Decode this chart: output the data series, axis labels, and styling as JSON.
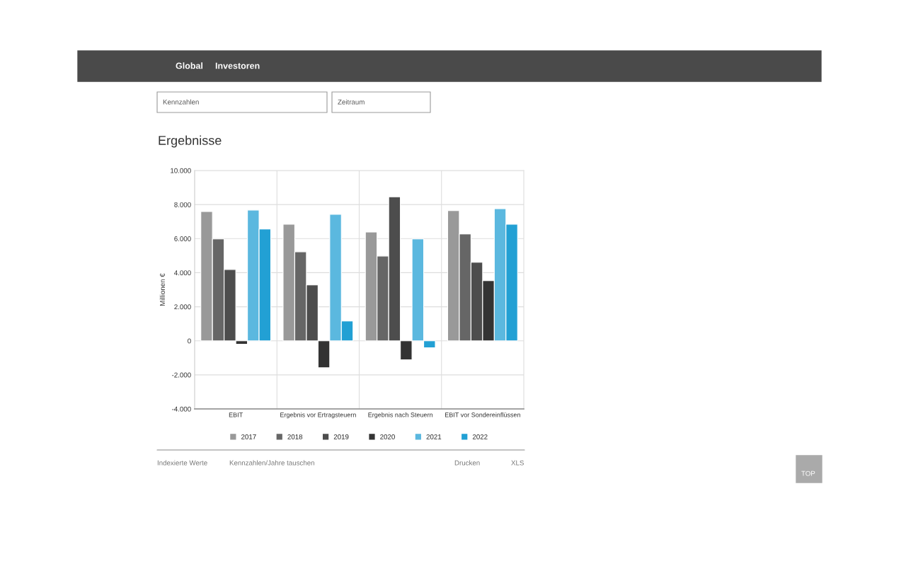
{
  "chart_data": {
    "type": "bar",
    "title": "Ergebnisse",
    "ylabel": "Millionen €",
    "categories": [
      "EBIT",
      "Ergebnis vor Ertragsteuern",
      "Ergebnis nach Steuern",
      "EBIT vor Sondereinflüssen"
    ],
    "series": [
      {
        "name": "2017",
        "color": "#999999",
        "values": [
          7590,
          6850,
          6390,
          7640
        ]
      },
      {
        "name": "2018",
        "color": "#666666",
        "values": [
          5980,
          5230,
          4980,
          6270
        ]
      },
      {
        "name": "2019",
        "color": "#4d4d4d",
        "values": [
          4190,
          3280,
          8460,
          4610
        ]
      },
      {
        "name": "2020",
        "color": "#333333",
        "values": [
          -200,
          -1580,
          -1120,
          3530
        ]
      },
      {
        "name": "2021",
        "color": "#5bb8df",
        "values": [
          7680,
          7430,
          5980,
          7760
        ]
      },
      {
        "name": "2022",
        "color": "#22a0d4",
        "values": [
          6560,
          1160,
          -410,
          6850
        ]
      }
    ],
    "ylim": [
      -4000,
      10000
    ],
    "yticks": [
      {
        "value": -4000,
        "label": "-4.000"
      },
      {
        "value": -2000,
        "label": "-2.000"
      },
      {
        "value": 0,
        "label": "0"
      },
      {
        "value": 2000,
        "label": "2.000"
      },
      {
        "value": 4000,
        "label": "4.000"
      },
      {
        "value": 6000,
        "label": "6.000"
      },
      {
        "value": 8000,
        "label": "8.000"
      },
      {
        "value": 10000,
        "label": "10.000"
      }
    ],
    "grid": true,
    "legend": "bottom",
    "annotations": [
      "Global",
      "Investoren",
      "Kennzahlen",
      "Zeitraum",
      "Indexierte Werte",
      "Kennzahlen/Jahre tauschen",
      "Drucken",
      "XLS",
      "TOP"
    ]
  }
}
